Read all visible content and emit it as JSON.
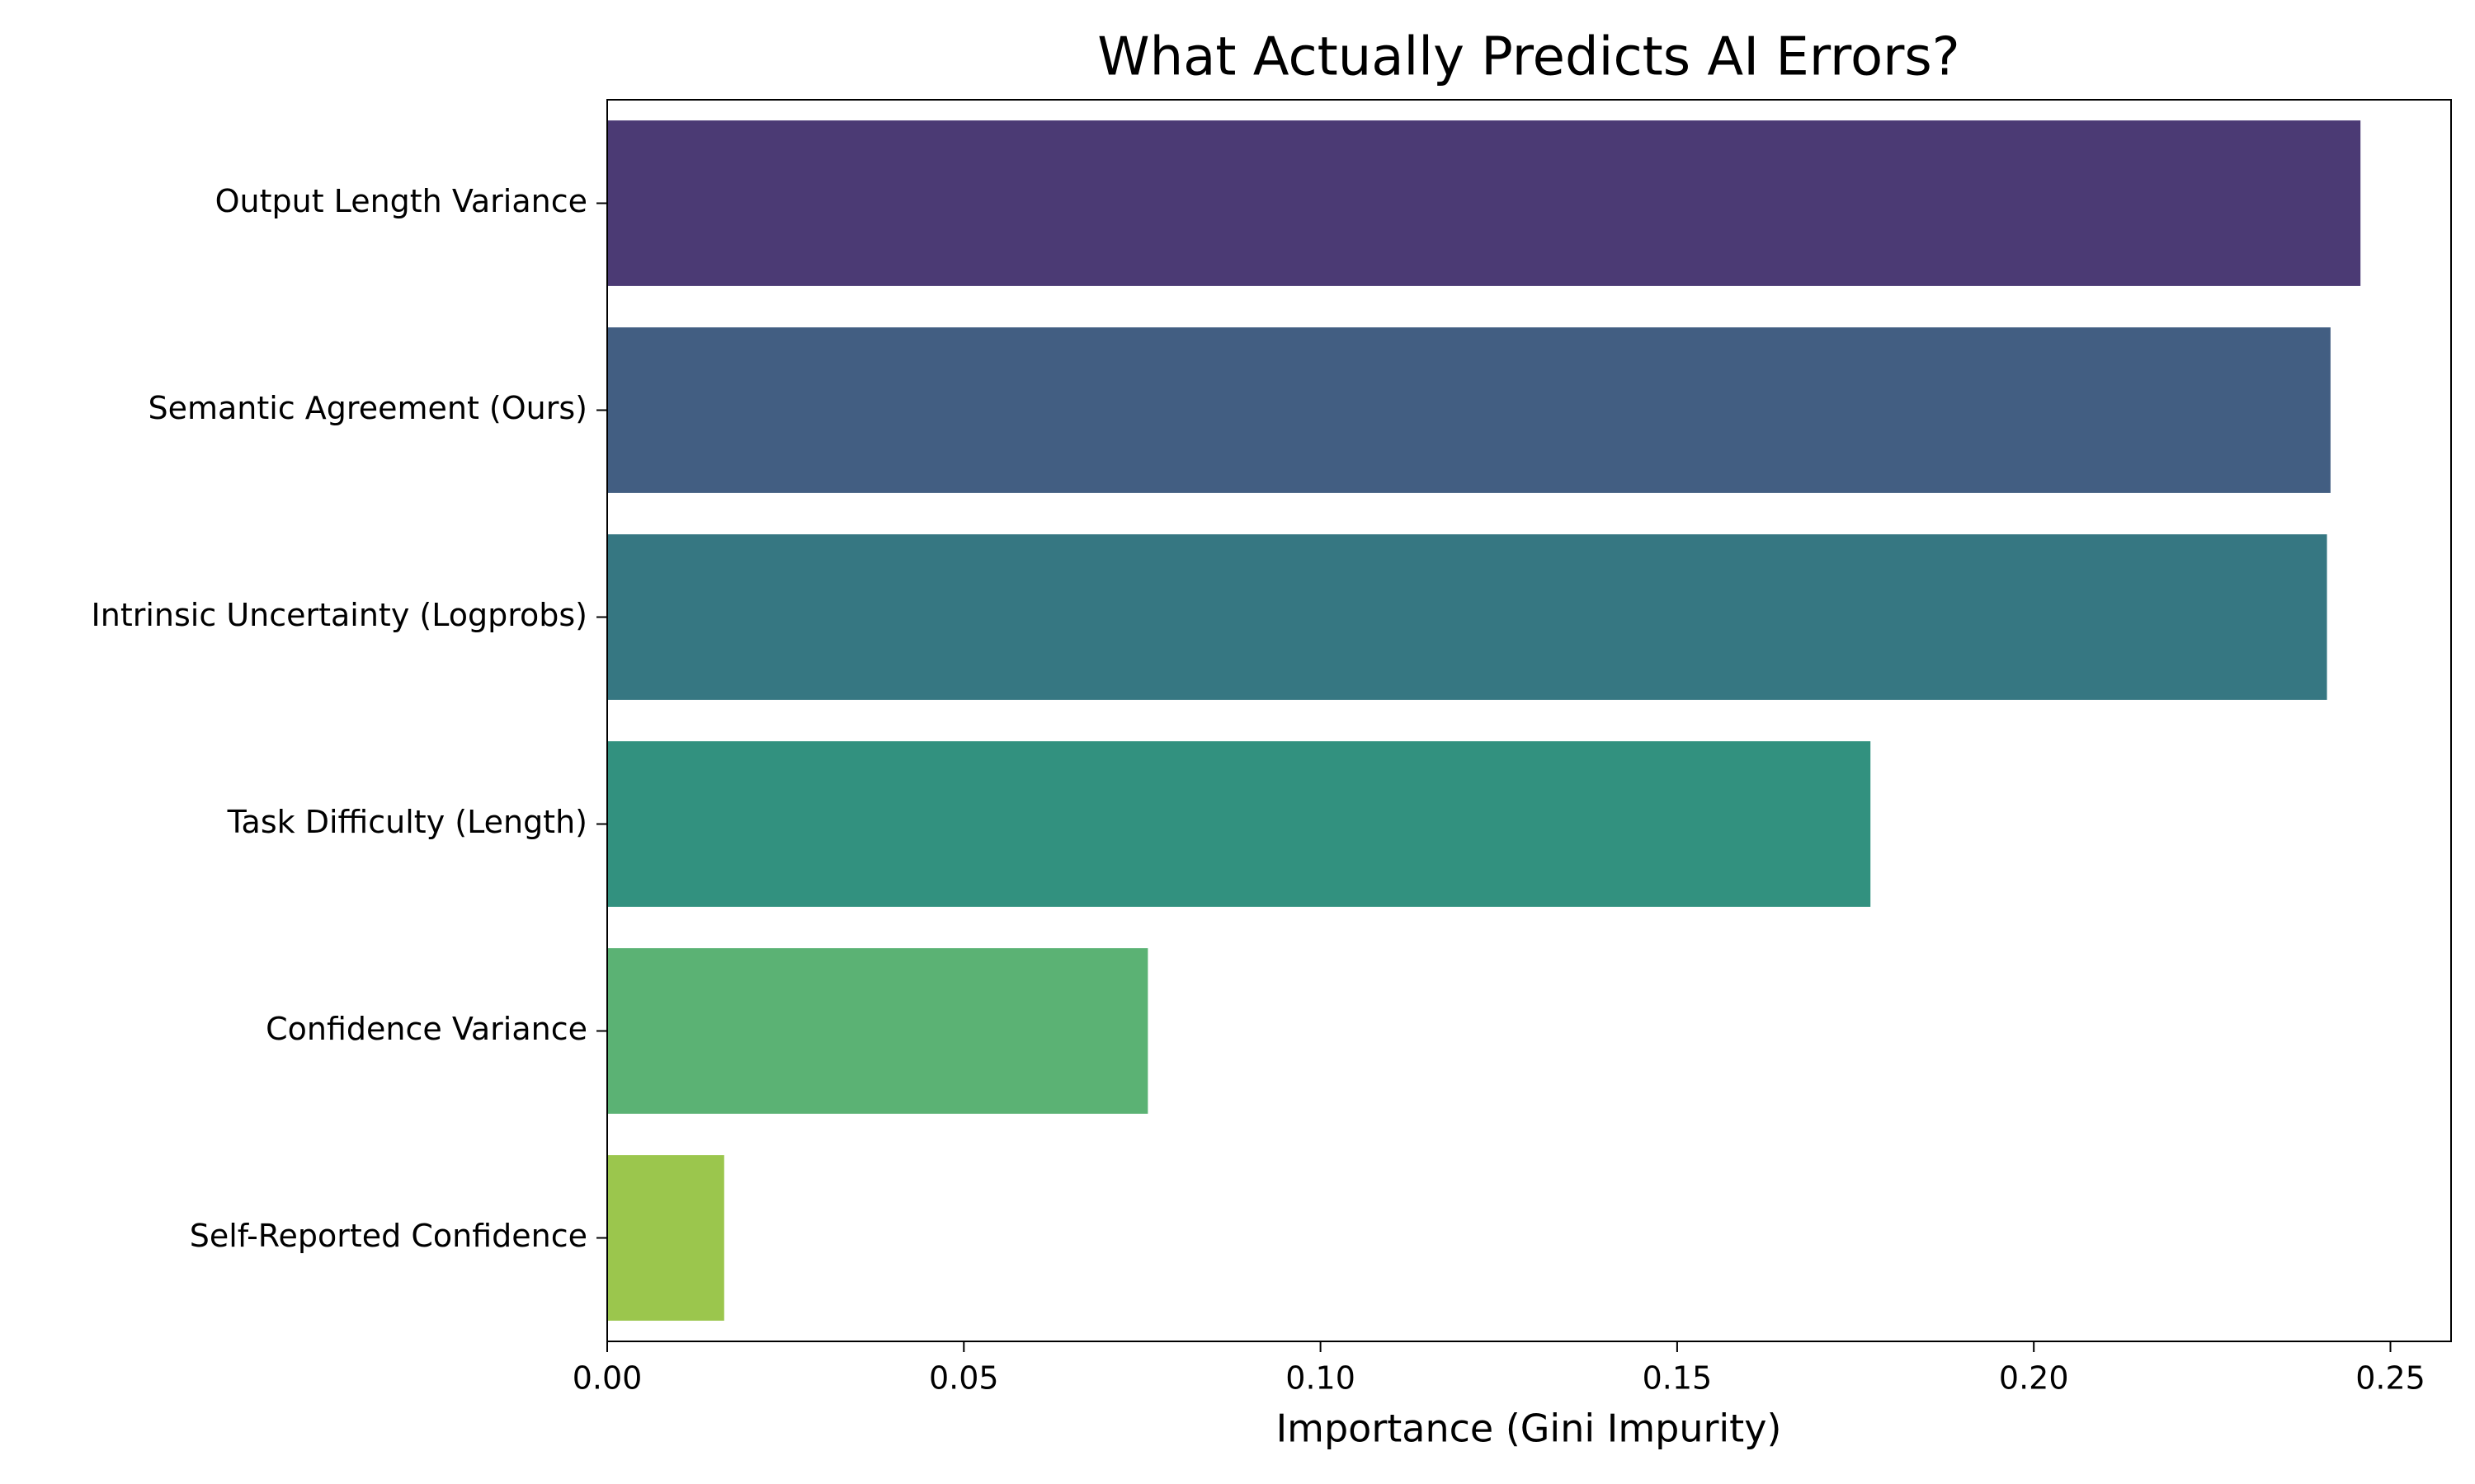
{
  "chart_data": {
    "type": "bar",
    "orientation": "horizontal",
    "title": "What Actually Predicts AI Errors?",
    "x_label": "Importance (Gini Impurity)",
    "categories": [
      "Output Length Variance",
      "Semantic Agreement (Ours)",
      "Intrinsic Uncertainty (Logprobs)",
      "Task Difficulty (Length)",
      "Confidence Variance",
      "Self-Reported Confidence"
    ],
    "values": [
      0.2458,
      0.2416,
      0.2411,
      0.1771,
      0.0758,
      0.0164
    ],
    "colors": [
      "#4b3a74",
      "#425e82",
      "#367782",
      "#32917f",
      "#5bb274",
      "#9bc64d"
    ],
    "xlim": [
      0,
      0.2585
    ],
    "xticks": [
      {
        "value": 0,
        "label": "0.00"
      },
      {
        "value": 0.05,
        "label": "0.05"
      },
      {
        "value": 0.1,
        "label": "0.10"
      },
      {
        "value": 0.15,
        "label": "0.15"
      },
      {
        "value": 0.2,
        "label": "0.20"
      },
      {
        "value": 0.25,
        "label": "0.25"
      }
    ],
    "grid": false
  }
}
